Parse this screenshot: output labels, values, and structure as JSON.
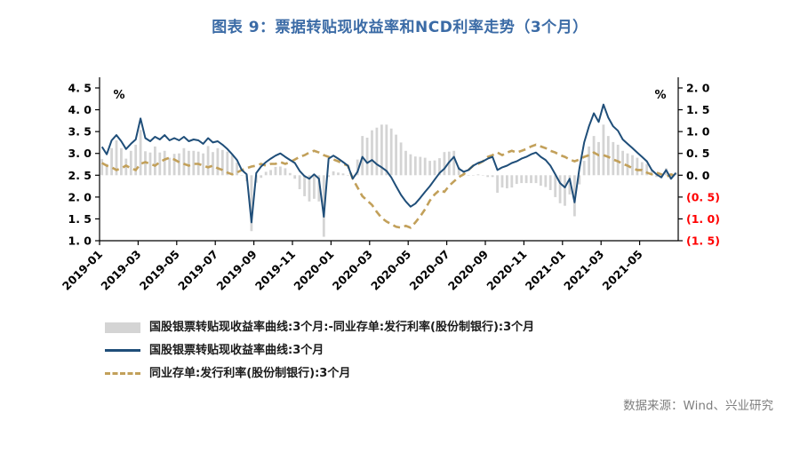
{
  "title": "图表 9：票据转贴现收益率和NCD利率走势（3个月）",
  "source": "数据来源：Wind、兴业研究",
  "colors": {
    "title": "#3b6ba6",
    "bill_line": "#1f4e79",
    "ncd_line": "#c2a05a",
    "spread_bar": "#d4d4d4",
    "negative_tick": "#ff0000",
    "axis": "#000000",
    "source_text": "#7f7f7f"
  },
  "legend": [
    {
      "type": "bar",
      "color": "#d4d4d4",
      "label": "国股银票转贴现收益率曲线:3个月:-同业存单:发行利率(股份制银行):3个月"
    },
    {
      "type": "solid-line",
      "color": "#1f4e79",
      "label": "国股银票转贴现收益率曲线:3个月"
    },
    {
      "type": "dashed-line",
      "color": "#c2a05a",
      "label": "同业存单:发行利率(股份制银行):3个月"
    }
  ],
  "chart_data": {
    "type": "line+bar",
    "title": "图表 9：票据转贴现收益率和NCD利率走势（3个月）",
    "left_axis": {
      "unit": "%",
      "min": 1.0,
      "max": 4.5,
      "step": 0.5,
      "tick_labels": [
        "4. 5",
        "4. 0",
        "3. 5",
        "3. 0",
        "2. 5",
        "2. 0",
        "1. 5",
        "1. 0"
      ]
    },
    "right_axis": {
      "unit": "%",
      "min": -1.5,
      "max": 2.0,
      "step": 0.5,
      "offset_vs_left": 2.5,
      "tick_labels": [
        "2. 0",
        "1. 5",
        "1. 0",
        "0. 5",
        "0. 0",
        "(0. 5)",
        "(1. 0)",
        "(1. 5)"
      ]
    },
    "x_ticks": [
      "2019-01",
      "2019-03",
      "2019-05",
      "2019-07",
      "2019-09",
      "2019-11",
      "2020-01",
      "2020-03",
      "2020-05",
      "2020-07",
      "2020-09",
      "2020-11",
      "2021-01",
      "2021-03",
      "2021-05"
    ],
    "months_span": 30,
    "points_per_month": 4,
    "grid": false,
    "legend_position": "bottom-left",
    "series": [
      {
        "name": "国股银票转贴现收益率曲线:3个月",
        "axis": "left",
        "style": "solid",
        "color": "#1f4e79",
        "values": [
          3.15,
          2.98,
          3.3,
          3.42,
          3.28,
          3.1,
          3.22,
          3.32,
          3.8,
          3.35,
          3.28,
          3.38,
          3.32,
          3.42,
          3.3,
          3.35,
          3.3,
          3.38,
          3.28,
          3.32,
          3.3,
          3.22,
          3.35,
          3.25,
          3.28,
          3.2,
          3.1,
          2.98,
          2.85,
          2.62,
          2.52,
          1.42,
          2.55,
          2.7,
          2.8,
          2.88,
          2.95,
          3.0,
          2.92,
          2.85,
          2.78,
          2.6,
          2.48,
          2.42,
          2.52,
          2.42,
          1.55,
          2.88,
          2.95,
          2.88,
          2.8,
          2.72,
          2.42,
          2.58,
          2.92,
          2.78,
          2.85,
          2.75,
          2.68,
          2.6,
          2.45,
          2.25,
          2.05,
          1.9,
          1.78,
          1.85,
          1.98,
          2.12,
          2.25,
          2.4,
          2.55,
          2.65,
          2.8,
          2.92,
          2.65,
          2.58,
          2.62,
          2.72,
          2.78,
          2.82,
          2.88,
          2.92,
          2.62,
          2.68,
          2.72,
          2.78,
          2.82,
          2.88,
          2.92,
          2.98,
          3.02,
          2.92,
          2.85,
          2.72,
          2.52,
          2.32,
          2.22,
          2.42,
          1.88,
          2.65,
          3.25,
          3.62,
          3.92,
          3.72,
          4.12,
          3.82,
          3.62,
          3.52,
          3.32,
          3.22,
          3.12,
          3.02,
          2.92,
          2.82,
          2.62,
          2.52,
          2.45,
          2.62,
          2.42,
          2.55
        ]
      },
      {
        "name": "同业存单:发行利率(股份制银行):3个月",
        "axis": "left",
        "style": "dashed",
        "color": "#c2a05a",
        "values": [
          2.78,
          2.72,
          2.68,
          2.62,
          2.66,
          2.72,
          2.66,
          2.62,
          2.76,
          2.8,
          2.76,
          2.72,
          2.8,
          2.86,
          2.9,
          2.86,
          2.8,
          2.76,
          2.72,
          2.76,
          2.76,
          2.72,
          2.68,
          2.72,
          2.66,
          2.62,
          2.56,
          2.52,
          2.56,
          2.62,
          2.66,
          2.7,
          2.72,
          2.76,
          2.72,
          2.76,
          2.76,
          2.8,
          2.76,
          2.8,
          2.86,
          2.92,
          2.96,
          3.02,
          3.06,
          3.02,
          2.96,
          2.92,
          2.86,
          2.82,
          2.76,
          2.72,
          2.42,
          2.22,
          2.02,
          1.92,
          1.82,
          1.66,
          1.52,
          1.44,
          1.38,
          1.32,
          1.3,
          1.34,
          1.3,
          1.42,
          1.56,
          1.72,
          1.92,
          2.06,
          2.16,
          2.12,
          2.26,
          2.36,
          2.46,
          2.52,
          2.62,
          2.72,
          2.76,
          2.82,
          2.92,
          2.96,
          3.02,
          2.96,
          3.02,
          3.06,
          3.02,
          3.06,
          3.1,
          3.16,
          3.2,
          3.16,
          3.12,
          3.06,
          3.02,
          2.96,
          2.92,
          2.86,
          2.82,
          2.86,
          2.92,
          2.96,
          3.02,
          2.96,
          2.96,
          2.92,
          2.86,
          2.82,
          2.76,
          2.72,
          2.66,
          2.62,
          2.62,
          2.56,
          2.52,
          2.56,
          2.52,
          2.46,
          2.52,
          2.48
        ]
      },
      {
        "name": "国股银票转贴现收益率曲线:3个月:-同业存单:发行利率(股份制银行):3个月",
        "axis": "right",
        "style": "bar",
        "color": "#d4d4d4",
        "derived_from": "series[0] - series[1]"
      }
    ]
  }
}
